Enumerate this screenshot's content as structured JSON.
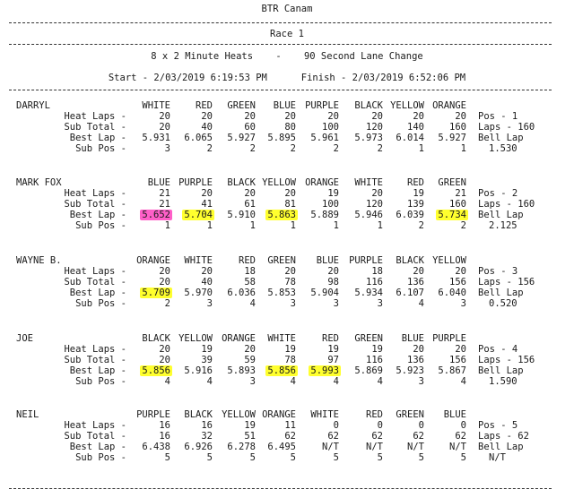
{
  "header": {
    "title": "BTR Canam",
    "race": "Race 1",
    "format": "8 x 2 Minute Heats    -    90 Second Lane Change",
    "times": "Start - 2/03/2019 6:19:53 PM      Finish - 2/03/2019 6:52:06 PM"
  },
  "row_labels": [
    "Heat Laps -",
    "Sub Total -",
    "Best Lap -",
    "Sub Pos -"
  ],
  "highlight_colors": {
    "pink": "#ff5fc8",
    "yellow": "#ffff2e"
  },
  "drivers": [
    {
      "name": "DARRYL",
      "lanes": [
        "WHITE",
        "RED",
        "GREEN",
        "BLUE",
        "PURPLE",
        "BLACK",
        "YELLOW",
        "ORANGE"
      ],
      "heat_laps": [
        "20",
        "20",
        "20",
        "20",
        "20",
        "20",
        "20",
        "20"
      ],
      "sub_total": [
        "20",
        "40",
        "60",
        "80",
        "100",
        "120",
        "140",
        "160"
      ],
      "best_lap": [
        "5.931",
        "6.065",
        "5.927",
        "5.895",
        "5.961",
        "5.973",
        "6.014",
        "5.927"
      ],
      "sub_pos": [
        "3",
        "2",
        "2",
        "2",
        "2",
        "2",
        "1",
        "1"
      ],
      "summary": [
        "Pos - 1",
        "Laps - 160",
        "Bell Lap",
        "1.530"
      ],
      "highlights": []
    },
    {
      "name": "MARK FOX",
      "lanes": [
        "BLUE",
        "PURPLE",
        "BLACK",
        "YELLOW",
        "ORANGE",
        "WHITE",
        "RED",
        "GREEN"
      ],
      "heat_laps": [
        "21",
        "20",
        "20",
        "20",
        "19",
        "20",
        "19",
        "21"
      ],
      "sub_total": [
        "21",
        "41",
        "61",
        "81",
        "100",
        "120",
        "139",
        "160"
      ],
      "best_lap": [
        "5.652",
        "5.704",
        "5.910",
        "5.863",
        "5.889",
        "5.946",
        "6.039",
        "5.734"
      ],
      "sub_pos": [
        "1",
        "1",
        "1",
        "1",
        "1",
        "1",
        "2",
        "2"
      ],
      "summary": [
        "Pos - 2",
        "Laps - 160",
        "Bell Lap",
        "2.125"
      ],
      "highlights": [
        {
          "lane": 0,
          "color": "pink"
        },
        {
          "lane": 1,
          "color": "yellow"
        },
        {
          "lane": 3,
          "color": "yellow"
        },
        {
          "lane": 7,
          "color": "yellow"
        }
      ]
    },
    {
      "name": "WAYNE B.",
      "lanes": [
        "ORANGE",
        "WHITE",
        "RED",
        "GREEN",
        "BLUE",
        "PURPLE",
        "BLACK",
        "YELLOW"
      ],
      "heat_laps": [
        "20",
        "20",
        "18",
        "20",
        "20",
        "18",
        "20",
        "20"
      ],
      "sub_total": [
        "20",
        "40",
        "58",
        "78",
        "98",
        "116",
        "136",
        "156"
      ],
      "best_lap": [
        "5.709",
        "5.970",
        "6.036",
        "5.853",
        "5.904",
        "5.934",
        "6.107",
        "6.040"
      ],
      "sub_pos": [
        "2",
        "3",
        "4",
        "3",
        "3",
        "3",
        "4",
        "3"
      ],
      "summary": [
        "Pos - 3",
        "Laps - 156",
        "Bell Lap",
        "0.520"
      ],
      "highlights": [
        {
          "lane": 0,
          "color": "yellow"
        }
      ]
    },
    {
      "name": "JOE",
      "lanes": [
        "BLACK",
        "YELLOW",
        "ORANGE",
        "WHITE",
        "RED",
        "GREEN",
        "BLUE",
        "PURPLE"
      ],
      "heat_laps": [
        "20",
        "19",
        "20",
        "19",
        "19",
        "19",
        "20",
        "20"
      ],
      "sub_total": [
        "20",
        "39",
        "59",
        "78",
        "97",
        "116",
        "136",
        "156"
      ],
      "best_lap": [
        "5.856",
        "5.916",
        "5.893",
        "5.856",
        "5.993",
        "5.869",
        "5.923",
        "5.867"
      ],
      "sub_pos": [
        "4",
        "4",
        "3",
        "4",
        "4",
        "4",
        "3",
        "4"
      ],
      "summary": [
        "Pos - 4",
        "Laps - 156",
        "Bell Lap",
        "1.590"
      ],
      "highlights": [
        {
          "lane": 0,
          "color": "yellow"
        },
        {
          "lane": 3,
          "color": "yellow"
        },
        {
          "lane": 4,
          "color": "yellow"
        }
      ]
    },
    {
      "name": "NEIL",
      "lanes": [
        "PURPLE",
        "BLACK",
        "YELLOW",
        "ORANGE",
        "WHITE",
        "RED",
        "GREEN",
        "BLUE"
      ],
      "heat_laps": [
        "16",
        "16",
        "19",
        "11",
        "0",
        "0",
        "0",
        "0"
      ],
      "sub_total": [
        "16",
        "32",
        "51",
        "62",
        "62",
        "62",
        "62",
        "62"
      ],
      "best_lap": [
        "6.438",
        "6.926",
        "6.278",
        "6.495",
        "N/T",
        "N/T",
        "N/T",
        "N/T"
      ],
      "sub_pos": [
        "5",
        "5",
        "5",
        "5",
        "5",
        "5",
        "5",
        "5"
      ],
      "summary": [
        "Pos - 5",
        "Laps - 62",
        "Bell Lap",
        "N/T"
      ],
      "highlights": []
    }
  ]
}
